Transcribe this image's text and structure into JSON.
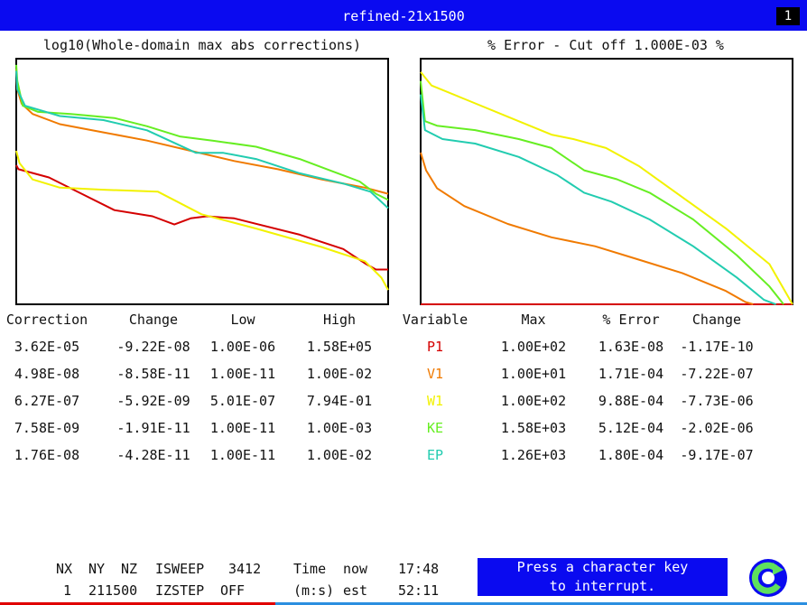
{
  "window": {
    "title": "refined-21x1500",
    "badge": "1"
  },
  "colors": {
    "P1": "#d40000",
    "V1": "#f07a00",
    "W1": "#f2f200",
    "KE": "#66ee22",
    "EP": "#22ccb0",
    "title_bg": "#0a0af0"
  },
  "chart_data": [
    {
      "type": "line",
      "title": "log10(Whole-domain max abs corrections)",
      "xlabel": "",
      "ylabel": "",
      "x_range": [
        0,
        3412
      ],
      "y_range": [
        -12,
        0
      ],
      "grid": false,
      "series": [
        {
          "name": "P1",
          "x": [
            0,
            20,
            300,
            600,
            900,
            1250,
            1450,
            1600,
            1750,
            2000,
            2600,
            3000,
            3200,
            3300,
            3412
          ],
          "y": [
            -5.2,
            -5.4,
            -5.8,
            -6.6,
            -7.4,
            -7.7,
            -8.1,
            -7.8,
            -7.7,
            -7.8,
            -8.6,
            -9.3,
            -10.0,
            -10.3,
            -10.3
          ]
        },
        {
          "name": "V1",
          "x": [
            0,
            10,
            50,
            150,
            400,
            800,
            1200,
            1600,
            2000,
            2400,
            2800,
            3200,
            3412
          ],
          "y": [
            -0.5,
            -1.5,
            -2.2,
            -2.7,
            -3.2,
            -3.6,
            -4.0,
            -4.5,
            -5.0,
            -5.4,
            -5.9,
            -6.3,
            -6.6
          ]
        },
        {
          "name": "W1",
          "x": [
            0,
            30,
            150,
            400,
            800,
            1300,
            1700,
            2200,
            2800,
            3200,
            3350,
            3412
          ],
          "y": [
            -4.5,
            -5.1,
            -5.9,
            -6.3,
            -6.4,
            -6.5,
            -7.6,
            -8.3,
            -9.2,
            -9.9,
            -10.7,
            -11.3
          ]
        },
        {
          "name": "KE",
          "x": [
            0,
            10,
            60,
            200,
            500,
            900,
            1200,
            1500,
            1800,
            2200,
            2600,
            2900,
            3150,
            3300,
            3412
          ],
          "y": [
            -0.3,
            -1.1,
            -2.3,
            -2.6,
            -2.7,
            -2.9,
            -3.3,
            -3.8,
            -4.0,
            -4.3,
            -4.9,
            -5.5,
            -6.0,
            -6.6,
            -6.9
          ]
        },
        {
          "name": "EP",
          "x": [
            0,
            10,
            80,
            400,
            800,
            1200,
            1650,
            1900,
            2200,
            2600,
            3000,
            3250,
            3412
          ],
          "y": [
            -0.6,
            -1.5,
            -2.3,
            -2.8,
            -3.0,
            -3.5,
            -4.6,
            -4.6,
            -4.9,
            -5.6,
            -6.1,
            -6.5,
            -7.3
          ]
        }
      ]
    },
    {
      "type": "line",
      "title": "% Error - Cut off 1.000E-03 %",
      "xlabel": "",
      "ylabel": "",
      "x_range": [
        0,
        3412
      ],
      "y_range": [
        -3,
        2.5
      ],
      "grid": false,
      "series": [
        {
          "name": "P1",
          "x": [
            0,
            3412
          ],
          "y": [
            -3.0,
            -3.0
          ]
        },
        {
          "name": "V1",
          "x": [
            0,
            50,
            150,
            400,
            800,
            1200,
            1600,
            2000,
            2400,
            2800,
            2980,
            3050
          ],
          "y": [
            0.4,
            0.0,
            -0.4,
            -0.8,
            -1.2,
            -1.5,
            -1.7,
            -2.0,
            -2.3,
            -2.7,
            -2.95,
            -3.0
          ]
        },
        {
          "name": "W1",
          "x": [
            0,
            100,
            400,
            800,
            1200,
            1400,
            1700,
            2000,
            2400,
            2800,
            3200,
            3412
          ],
          "y": [
            2.2,
            1.9,
            1.6,
            1.2,
            0.8,
            0.7,
            0.5,
            0.1,
            -0.6,
            -1.3,
            -2.1,
            -3.0
          ]
        },
        {
          "name": "KE",
          "x": [
            0,
            40,
            150,
            500,
            900,
            1200,
            1500,
            1800,
            2100,
            2500,
            2900,
            3200,
            3330
          ],
          "y": [
            2.0,
            1.1,
            1.0,
            0.9,
            0.7,
            0.5,
            0.0,
            -0.2,
            -0.5,
            -1.1,
            -1.9,
            -2.6,
            -3.0
          ]
        },
        {
          "name": "EP",
          "x": [
            0,
            40,
            200,
            500,
            900,
            1250,
            1500,
            1750,
            2100,
            2500,
            2900,
            3150,
            3260
          ],
          "y": [
            1.7,
            0.9,
            0.7,
            0.6,
            0.3,
            -0.1,
            -0.5,
            -0.7,
            -1.1,
            -1.7,
            -2.4,
            -2.9,
            -3.0
          ]
        }
      ]
    }
  ],
  "left_table": {
    "headers": [
      "Correction",
      "Change",
      "Low",
      "High"
    ],
    "rows": [
      [
        "3.62E-05",
        "-9.22E-08",
        "1.00E-06",
        "1.58E+05"
      ],
      [
        "4.98E-08",
        "-8.58E-11",
        "1.00E-11",
        "1.00E-02"
      ],
      [
        "6.27E-07",
        "-5.92E-09",
        "5.01E-07",
        "7.94E-01"
      ],
      [
        "7.58E-09",
        "-1.91E-11",
        "1.00E-11",
        "1.00E-03"
      ],
      [
        "1.76E-08",
        "-4.28E-11",
        "1.00E-11",
        "1.00E-02"
      ]
    ]
  },
  "right_table": {
    "headers": [
      "Variable",
      "Max",
      "% Error",
      "Change"
    ],
    "rows": [
      [
        "P1",
        "1.00E+02",
        "1.63E-08",
        "-1.17E-10"
      ],
      [
        "V1",
        "1.00E+01",
        "1.71E-04",
        "-7.22E-07"
      ],
      [
        "W1",
        "1.00E+02",
        "9.88E-04",
        "-7.73E-06"
      ],
      [
        "KE",
        "1.58E+03",
        "5.12E-04",
        "-2.02E-06"
      ],
      [
        "EP",
        "1.26E+03",
        "1.80E-04",
        "-9.17E-07"
      ]
    ]
  },
  "status": {
    "nx_label": "NX",
    "ny_label": "NY",
    "nz_label": "NZ",
    "isweep_label": "ISWEEP",
    "isweep_value": "3412",
    "time_label": "Time",
    "now_label": "now",
    "now_value": "17:48",
    "nx_value": "1",
    "nynz_value": "211500",
    "izstep_label": "IZSTEP",
    "izstep_value": "OFF",
    "ms_label": "(m:s)",
    "est_label": "est",
    "est_value": "52:11",
    "press_line1": "Press a character key",
    "press_line2": "to interrupt."
  }
}
